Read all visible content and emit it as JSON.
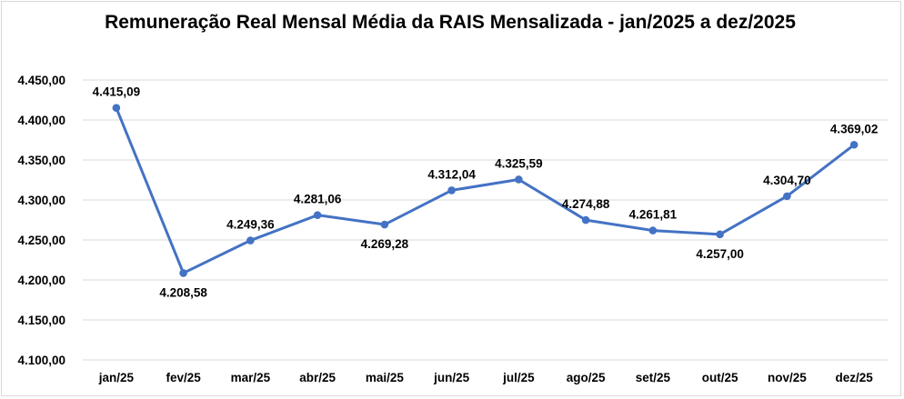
{
  "chart_data": {
    "type": "line",
    "title": "Remuneração Real Mensal Média da RAIS Mensalizada - jan/2025 a dez/2025",
    "xlabel": "",
    "ylabel": "",
    "categories": [
      "jan/25",
      "fev/25",
      "mar/25",
      "abr/25",
      "mai/25",
      "jun/25",
      "jul/25",
      "ago/25",
      "set/25",
      "out/25",
      "nov/25",
      "dez/25"
    ],
    "values": [
      4415.09,
      4208.58,
      4249.36,
      4281.06,
      4269.28,
      4312.04,
      4325.59,
      4274.88,
      4261.81,
      4257.0,
      4304.7,
      4369.02
    ],
    "data_labels": [
      "4.415,09",
      "4.208,58",
      "4.249,36",
      "4.281,06",
      "4.269,28",
      "4.312,04",
      "4.325,59",
      "4.274,88",
      "4.261,81",
      "4.257,00",
      "4.304,70",
      "4.369,02"
    ],
    "label_positions": [
      "above",
      "below",
      "above",
      "above",
      "below",
      "above",
      "above",
      "above",
      "above",
      "below",
      "above",
      "above"
    ],
    "ylim": [
      4100,
      4450
    ],
    "yticks": [
      4100,
      4150,
      4200,
      4250,
      4300,
      4350,
      4400,
      4450
    ],
    "ytick_labels": [
      "4.100,00",
      "4.150,00",
      "4.200,00",
      "4.250,00",
      "4.300,00",
      "4.350,00",
      "4.400,00",
      "4.450,00"
    ],
    "grid": true,
    "legend": "none",
    "line_color": "#4472c4",
    "grid_color": "#d9d9d9"
  }
}
